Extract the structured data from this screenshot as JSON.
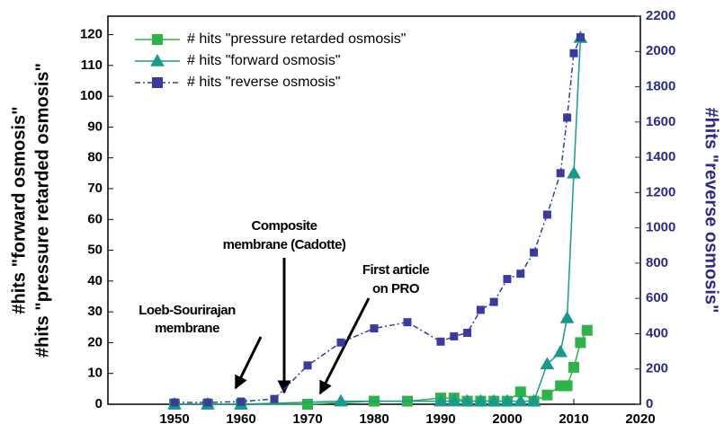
{
  "chart_data": {
    "type": "line",
    "xlim": [
      1940,
      2020
    ],
    "xticks": [
      1950,
      1960,
      1970,
      1980,
      1990,
      2000,
      2010,
      2020
    ],
    "ylim": [
      0,
      126
    ],
    "yticks": [
      0,
      10,
      20,
      30,
      40,
      50,
      60,
      70,
      80,
      90,
      100,
      110,
      120
    ],
    "y2lim": [
      0,
      2200
    ],
    "y2ticks": [
      0,
      200,
      400,
      600,
      800,
      1000,
      1200,
      1400,
      1600,
      1800,
      2000,
      2200
    ],
    "ylabel": [
      "#hits \"forward osmosis\"",
      "#hits \"pressure retarded osmosis\""
    ],
    "y2label": "#hits \"reverse osmosis\"",
    "legend": "upper left",
    "series": [
      {
        "name": "# hits \"pressure retarded osmosis\"",
        "color": "#2db34a",
        "marker": "square",
        "x": [
          1950,
          1955,
          1960,
          1970,
          1980,
          1985,
          1990,
          1992,
          1994,
          1996,
          1998,
          2000,
          2002,
          2004,
          2006,
          2008,
          2009,
          2010,
          2011,
          2012
        ],
        "values": [
          0,
          0,
          0,
          0,
          1,
          1,
          2,
          2,
          1,
          1,
          1,
          1,
          4,
          1,
          3,
          6,
          6,
          12,
          20,
          24
        ]
      },
      {
        "name": "# hits \"forward osmosis\"",
        "color": "#1a9a8a",
        "marker": "triangle",
        "x": [
          1950,
          1955,
          1960,
          1975,
          1990,
          1992,
          1994,
          1996,
          1998,
          2000,
          2002,
          2004,
          2006,
          2008,
          2009,
          2010,
          2011
        ],
        "values": [
          0,
          0,
          0,
          1,
          1,
          1,
          1,
          1,
          1,
          1,
          1,
          1,
          13,
          17,
          28,
          75,
          119
        ]
      },
      {
        "name": "# hits \"reverse osmosis\"",
        "color": "#3a3aa0",
        "marker": "square",
        "dash": true,
        "axis": "y2",
        "x": [
          1950,
          1955,
          1960,
          1965,
          1970,
          1975,
          1980,
          1985,
          1990,
          1992,
          1994,
          1996,
          1998,
          2000,
          2002,
          2004,
          2006,
          2008,
          2009,
          2010,
          2011
        ],
        "values": [
          10,
          10,
          15,
          30,
          220,
          350,
          430,
          465,
          355,
          385,
          405,
          535,
          580,
          710,
          740,
          860,
          1075,
          1310,
          1625,
          1990,
          2080
        ]
      }
    ],
    "annotations": [
      {
        "lines": [
          "Loeb-Sourirajan",
          "membrane"
        ]
      },
      {
        "lines": [
          "Composite",
          "membrane (Cadotte)"
        ]
      },
      {
        "lines": [
          "First article",
          "on PRO"
        ]
      }
    ]
  }
}
